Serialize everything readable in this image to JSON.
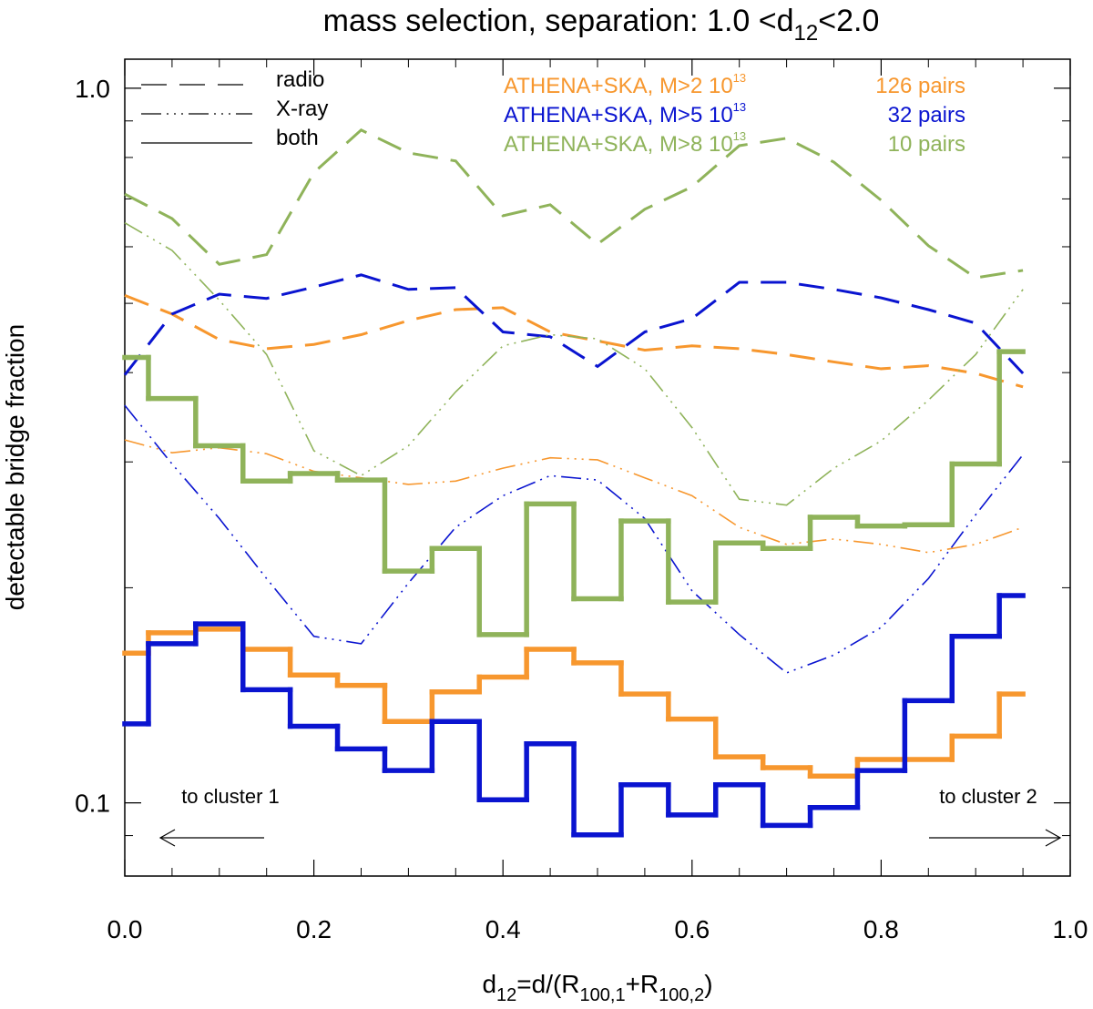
{
  "chart_data": {
    "type": "line",
    "title": {
      "main": "mass selection, separation:  1.0 <d",
      "sub": "12",
      "end": "<2.0"
    },
    "xlabel": {
      "a": "d",
      "a_sub": "12",
      "b": "=d/(R",
      "b_sub": "100,1",
      "c": "+R",
      "c_sub": "100,2",
      "d": ")"
    },
    "ylabel": "detectable bridge fraction",
    "annotations": [
      "to cluster 1",
      "to cluster 2"
    ],
    "log_y": true,
    "xlim": [
      0,
      1
    ],
    "xticks": [
      {
        "value": 0,
        "label": "0.0"
      },
      0.2,
      0.4,
      0.6,
      0.8,
      {
        "value": 1,
        "label": "1.0"
      }
    ],
    "xminorticks": [
      0.05,
      0.1,
      0.15,
      0.25,
      0.3,
      0.35,
      0.45,
      0.5,
      0.55,
      0.65,
      0.7,
      0.75,
      0.85,
      0.9,
      0.95
    ],
    "ylim": [
      0.079,
      1.098
    ],
    "yticks": [
      0.1,
      {
        "value": 1,
        "label": "1.0"
      }
    ],
    "yminorticks": [
      0.09,
      0.2,
      0.3,
      0.4,
      0.5,
      0.6,
      0.7,
      0.8,
      0.9
    ],
    "styles": [
      "radio",
      "X-ray",
      "both"
    ],
    "x": [
      0,
      0.05,
      0.1,
      0.15,
      0.2,
      0.25,
      0.3,
      0.35,
      0.4,
      0.45,
      0.5,
      0.55,
      0.6,
      0.65,
      0.7,
      0.75,
      0.8,
      0.85,
      0.9,
      0.95
    ],
    "series": [
      {
        "name": "ATHENA+SKA, M>2 10",
        "exponent": "13",
        "pairs": "126 pairs",
        "color": "#f7972e",
        "radio": [
          0.513,
          0.483,
          0.445,
          0.432,
          0.438,
          0.452,
          0.473,
          0.49,
          0.493,
          0.456,
          0.443,
          0.43,
          0.436,
          0.432,
          0.424,
          0.414,
          0.405,
          0.409,
          0.399,
          0.382
        ],
        "xray": [
          0.322,
          0.309,
          0.314,
          0.308,
          0.291,
          0.285,
          0.279,
          0.282,
          0.294,
          0.304,
          0.302,
          0.285,
          0.269,
          0.243,
          0.23,
          0.234,
          0.23,
          0.224,
          0.23,
          0.243
        ],
        "both": [
          0.162,
          0.173,
          0.175,
          0.164,
          0.151,
          0.146,
          0.13,
          0.143,
          0.15,
          0.164,
          0.157,
          0.142,
          0.131,
          0.116,
          0.112,
          0.109,
          0.115,
          0.115,
          0.124,
          0.142
        ]
      },
      {
        "name": "ATHENA+SKA, M>5 10",
        "exponent": "13",
        "pairs": "32 pairs",
        "color": "#0a14d0",
        "radio": [
          0.397,
          0.483,
          0.515,
          0.508,
          0.527,
          0.548,
          0.523,
          0.526,
          0.456,
          0.449,
          0.408,
          0.456,
          0.476,
          0.535,
          0.535,
          0.523,
          0.509,
          0.49,
          0.469,
          0.399
        ],
        "xray": [
          0.36,
          0.298,
          0.25,
          0.206,
          0.171,
          0.167,
          0.203,
          0.243,
          0.269,
          0.287,
          0.283,
          0.25,
          0.198,
          0.172,
          0.152,
          0.161,
          0.176,
          0.206,
          0.253,
          0.307
        ],
        "both": [
          0.129,
          0.167,
          0.178,
          0.144,
          0.128,
          0.119,
          0.111,
          0.13,
          0.101,
          0.121,
          0.0902,
          0.106,
          0.0962,
          0.106,
          0.093,
          0.0985,
          0.111,
          0.139,
          0.171,
          0.195
        ]
      },
      {
        "name": "ATHENA+SKA, M>8 10",
        "exponent": "13",
        "pairs": "10 pairs",
        "color": "#8fb35a",
        "radio": [
          0.711,
          0.657,
          0.567,
          0.585,
          0.762,
          0.874,
          0.812,
          0.791,
          0.663,
          0.687,
          0.605,
          0.677,
          0.728,
          0.831,
          0.851,
          0.788,
          0.697,
          0.602,
          0.543,
          0.556
        ],
        "xray": [
          0.648,
          0.593,
          0.505,
          0.424,
          0.311,
          0.287,
          0.316,
          0.376,
          0.436,
          0.452,
          0.446,
          0.405,
          0.335,
          0.266,
          0.261,
          0.294,
          0.321,
          0.366,
          0.424,
          0.523
        ],
        "both": [
          0.42,
          0.368,
          0.316,
          0.282,
          0.289,
          0.283,
          0.211,
          0.227,
          0.172,
          0.262,
          0.193,
          0.248,
          0.191,
          0.231,
          0.227,
          0.251,
          0.244,
          0.245,
          0.298,
          0.428
        ]
      }
    ]
  }
}
